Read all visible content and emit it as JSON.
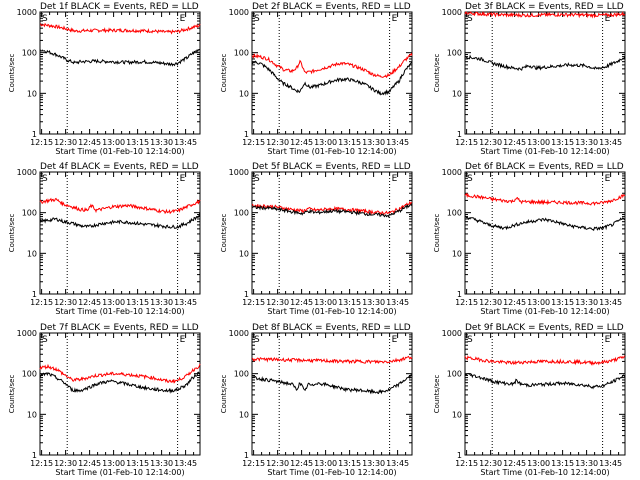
{
  "figure": {
    "x_tick_labels": [
      "12:15",
      "12:30",
      "12:45",
      "13:00",
      "13:15",
      "13:30",
      "13:45"
    ],
    "y_tick_labels": [
      "1",
      "10",
      "100",
      "1000"
    ],
    "xlabel": "Start Time (01-Feb-10 12:14:00)",
    "ylabel": "Counts/sec",
    "marker_S": "S",
    "marker_E": "E",
    "colors": {
      "events": "#000000",
      "lld": "#ff0000",
      "axes": "#000000",
      "background": "#ffffff"
    }
  },
  "chart_data": [
    {
      "type": "line",
      "title": "Det 1f BLACK = Events, RED = LLD",
      "xlabel": "Start Time (01-Feb-10 12:14:00)",
      "ylabel": "Counts/sec",
      "x_range_min": [
        0,
        100
      ],
      "ylim": [
        1,
        1000
      ],
      "y_scale": "log",
      "markers_min": {
        "S": 17,
        "E": 86
      },
      "series": [
        {
          "name": "Events",
          "color": "#000000",
          "x": [
            0,
            5,
            10,
            17,
            22,
            25,
            35,
            45,
            55,
            65,
            75,
            82,
            86,
            92,
            100
          ],
          "y": [
            120,
            105,
            90,
            65,
            56,
            60,
            62,
            60,
            58,
            60,
            56,
            52,
            55,
            75,
            125
          ]
        },
        {
          "name": "LLD",
          "color": "#ff0000",
          "x": [
            0,
            5,
            10,
            17,
            22,
            30,
            40,
            50,
            60,
            70,
            80,
            86,
            92,
            100
          ],
          "y": [
            500,
            470,
            440,
            380,
            340,
            350,
            355,
            355,
            350,
            340,
            320,
            330,
            380,
            470
          ]
        }
      ]
    },
    {
      "type": "line",
      "title": "Det 2f BLACK = Events, RED = LLD",
      "xlabel": "Start Time (01-Feb-10 12:14:00)",
      "ylabel": "Counts/sec",
      "x_range_min": [
        0,
        100
      ],
      "ylim": [
        1,
        1000
      ],
      "y_scale": "log",
      "markers_min": {
        "S": 17,
        "E": 86
      },
      "series": [
        {
          "name": "Events",
          "color": "#000000",
          "x": [
            0,
            5,
            10,
            15,
            19,
            22,
            27,
            30,
            33,
            36,
            40,
            45,
            50,
            55,
            60,
            65,
            70,
            75,
            80,
            86,
            92,
            100
          ],
          "y": [
            60,
            55,
            40,
            25,
            18,
            16,
            12,
            11,
            18,
            14,
            15,
            17,
            20,
            22,
            22,
            20,
            17,
            13,
            10,
            11,
            20,
            55
          ]
        },
        {
          "name": "LLD",
          "color": "#ff0000",
          "x": [
            0,
            5,
            10,
            15,
            20,
            25,
            28,
            30,
            33,
            38,
            45,
            50,
            55,
            60,
            65,
            70,
            75,
            80,
            86,
            92,
            100
          ],
          "y": [
            85,
            80,
            70,
            50,
            38,
            35,
            42,
            60,
            32,
            35,
            42,
            48,
            55,
            52,
            45,
            38,
            30,
            26,
            28,
            45,
            90
          ]
        }
      ]
    },
    {
      "type": "line",
      "title": "Det 3f BLACK = Events, RED = LLD",
      "xlabel": "Start Time (01-Feb-10 12:14:00)",
      "ylabel": "Counts/sec",
      "x_range_min": [
        0,
        100
      ],
      "ylim": [
        1,
        1000
      ],
      "y_scale": "log",
      "markers_min": {
        "S": 17,
        "E": 86
      },
      "series": [
        {
          "name": "Events",
          "color": "#000000",
          "x": [
            0,
            5,
            10,
            17,
            25,
            30,
            35,
            40,
            45,
            55,
            65,
            75,
            82,
            88,
            95,
            100
          ],
          "y": [
            80,
            75,
            70,
            55,
            46,
            42,
            40,
            48,
            42,
            46,
            50,
            48,
            40,
            45,
            60,
            80
          ]
        },
        {
          "name": "LLD",
          "color": "#ff0000",
          "x": [
            0,
            10,
            20,
            30,
            40,
            50,
            60,
            70,
            80,
            90,
            100
          ],
          "y": [
            950,
            900,
            860,
            840,
            830,
            850,
            860,
            850,
            830,
            840,
            900
          ]
        }
      ]
    },
    {
      "type": "line",
      "title": "Det 4f BLACK = Events, RED = LLD",
      "xlabel": "Start Time (01-Feb-10 12:14:00)",
      "ylabel": "Counts/sec",
      "x_range_min": [
        0,
        100
      ],
      "ylim": [
        1,
        1000
      ],
      "y_scale": "log",
      "markers_min": {
        "S": 17,
        "E": 86
      },
      "series": [
        {
          "name": "Events",
          "color": "#000000",
          "x": [
            0,
            5,
            10,
            15,
            20,
            25,
            30,
            35,
            40,
            45,
            50,
            55,
            60,
            65,
            70,
            75,
            80,
            86,
            92,
            100
          ],
          "y": [
            60,
            65,
            70,
            60,
            55,
            48,
            45,
            50,
            55,
            58,
            60,
            58,
            55,
            52,
            50,
            48,
            45,
            45,
            55,
            85
          ]
        },
        {
          "name": "LLD",
          "color": "#ff0000",
          "x": [
            0,
            5,
            10,
            15,
            20,
            25,
            30,
            32,
            35,
            40,
            45,
            50,
            55,
            60,
            65,
            70,
            75,
            80,
            86,
            92,
            100
          ],
          "y": [
            180,
            200,
            210,
            160,
            140,
            120,
            115,
            150,
            115,
            125,
            140,
            145,
            150,
            140,
            130,
            120,
            110,
            105,
            110,
            140,
            190
          ]
        }
      ]
    },
    {
      "type": "line",
      "title": "Det 5f BLACK = Events, RED = LLD",
      "xlabel": "Start Time (01-Feb-10 12:14:00)",
      "ylabel": "Counts/sec",
      "x_range_min": [
        0,
        100
      ],
      "ylim": [
        1,
        1000
      ],
      "y_scale": "log",
      "markers_min": {
        "S": 17,
        "E": 86
      },
      "series": [
        {
          "name": "Events",
          "color": "#000000",
          "x": [
            0,
            10,
            17,
            25,
            32,
            35,
            40,
            50,
            60,
            70,
            80,
            86,
            92,
            100
          ],
          "y": [
            135,
            130,
            120,
            105,
            95,
            110,
            100,
            110,
            105,
            95,
            88,
            85,
            110,
            160
          ]
        },
        {
          "name": "LLD",
          "color": "#ff0000",
          "x": [
            0,
            10,
            17,
            25,
            32,
            35,
            40,
            50,
            60,
            70,
            80,
            86,
            92,
            100
          ],
          "y": [
            150,
            145,
            135,
            120,
            110,
            125,
            115,
            125,
            120,
            110,
            100,
            98,
            125,
            180
          ]
        }
      ]
    },
    {
      "type": "line",
      "title": "Det 6f BLACK = Events, RED = LLD",
      "xlabel": "Start Time (01-Feb-10 12:14:00)",
      "ylabel": "Counts/sec",
      "x_range_min": [
        0,
        100
      ],
      "ylim": [
        1,
        1000
      ],
      "y_scale": "log",
      "markers_min": {
        "S": 17,
        "E": 86
      },
      "series": [
        {
          "name": "Events",
          "color": "#000000",
          "x": [
            0,
            5,
            10,
            15,
            20,
            25,
            30,
            35,
            40,
            45,
            50,
            55,
            60,
            65,
            70,
            75,
            80,
            86,
            92,
            100
          ],
          "y": [
            80,
            70,
            60,
            50,
            45,
            42,
            48,
            55,
            60,
            65,
            68,
            62,
            55,
            48,
            45,
            42,
            40,
            42,
            50,
            75
          ]
        },
        {
          "name": "LLD",
          "color": "#ff0000",
          "x": [
            0,
            5,
            10,
            17,
            25,
            30,
            32,
            35,
            40,
            50,
            60,
            70,
            80,
            86,
            92,
            100
          ],
          "y": [
            270,
            255,
            240,
            215,
            195,
            190,
            230,
            185,
            185,
            180,
            180,
            175,
            170,
            175,
            200,
            270
          ]
        }
      ]
    },
    {
      "type": "line",
      "title": "Det 7f BLACK = Events, RED = LLD",
      "xlabel": "Start Time (01-Feb-10 12:14:00)",
      "ylabel": "Counts/sec",
      "x_range_min": [
        0,
        100
      ],
      "ylim": [
        1,
        1000
      ],
      "y_scale": "log",
      "markers_min": {
        "S": 17,
        "E": 86
      },
      "series": [
        {
          "name": "Events",
          "color": "#000000",
          "x": [
            0,
            5,
            10,
            15,
            20,
            25,
            30,
            35,
            40,
            45,
            50,
            55,
            60,
            65,
            70,
            75,
            80,
            86,
            92,
            100
          ],
          "y": [
            90,
            100,
            80,
            60,
            40,
            38,
            45,
            55,
            62,
            65,
            60,
            55,
            50,
            45,
            42,
            40,
            38,
            40,
            55,
            110
          ]
        },
        {
          "name": "LLD",
          "color": "#ff0000",
          "x": [
            0,
            5,
            10,
            15,
            20,
            25,
            30,
            35,
            40,
            45,
            50,
            55,
            60,
            65,
            70,
            75,
            80,
            86,
            92,
            100
          ],
          "y": [
            140,
            150,
            130,
            95,
            70,
            72,
            80,
            90,
            95,
            100,
            98,
            95,
            90,
            85,
            80,
            72,
            65,
            68,
            90,
            160
          ]
        }
      ]
    },
    {
      "type": "line",
      "title": "Det 8f BLACK = Events, RED = LLD",
      "xlabel": "Start Time (01-Feb-10 12:14:00)",
      "ylabel": "Counts/sec",
      "x_range_min": [
        0,
        100
      ],
      "ylim": [
        1,
        1000
      ],
      "y_scale": "log",
      "markers_min": {
        "S": 17,
        "E": 86
      },
      "series": [
        {
          "name": "Events",
          "color": "#000000",
          "x": [
            0,
            5,
            10,
            15,
            20,
            25,
            28,
            30,
            33,
            35,
            38,
            40,
            45,
            50,
            55,
            60,
            65,
            70,
            75,
            80,
            86,
            92,
            100
          ],
          "y": [
            80,
            75,
            70,
            65,
            60,
            55,
            40,
            60,
            35,
            55,
            50,
            60,
            55,
            50,
            45,
            40,
            40,
            38,
            36,
            35,
            40,
            55,
            90
          ]
        },
        {
          "name": "LLD",
          "color": "#ff0000",
          "x": [
            0,
            10,
            20,
            30,
            40,
            50,
            60,
            70,
            80,
            86,
            92,
            100
          ],
          "y": [
            230,
            225,
            220,
            215,
            210,
            205,
            200,
            200,
            195,
            200,
            220,
            260
          ]
        }
      ]
    },
    {
      "type": "line",
      "title": "Det 9f BLACK = Events, RED = LLD",
      "xlabel": "Start Time (01-Feb-10 12:14:00)",
      "ylabel": "Counts/sec",
      "x_range_min": [
        0,
        100
      ],
      "ylim": [
        1,
        1000
      ],
      "y_scale": "log",
      "markers_min": {
        "S": 17,
        "E": 86
      },
      "series": [
        {
          "name": "Events",
          "color": "#000000",
          "x": [
            0,
            5,
            10,
            17,
            25,
            30,
            32,
            35,
            40,
            50,
            60,
            70,
            80,
            86,
            92,
            100
          ],
          "y": [
            100,
            90,
            80,
            65,
            58,
            55,
            68,
            55,
            52,
            55,
            58,
            55,
            48,
            50,
            62,
            90
          ]
        },
        {
          "name": "LLD",
          "color": "#ff0000",
          "x": [
            0,
            5,
            10,
            17,
            25,
            30,
            35,
            40,
            50,
            60,
            70,
            80,
            86,
            92,
            100
          ],
          "y": [
            250,
            235,
            220,
            200,
            190,
            185,
            190,
            195,
            200,
            200,
            195,
            185,
            190,
            210,
            260
          ]
        }
      ]
    }
  ]
}
